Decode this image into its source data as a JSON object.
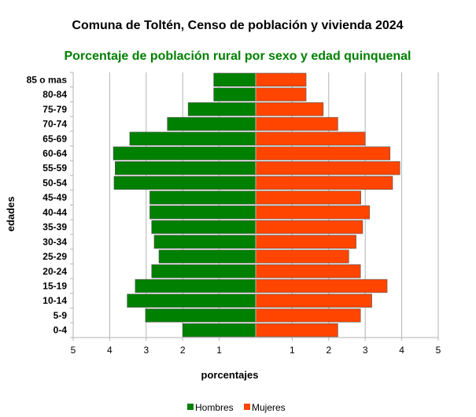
{
  "chart_data": {
    "type": "bar",
    "orientation": "horizontal",
    "layout": "population-pyramid",
    "title": "Comuna de Toltén, Censo de población y vivienda 2024",
    "subtitle": "Porcentaje de población rural por sexo y edad quinquenal",
    "subtitle_color": "#008000",
    "xlabel": "porcentajes",
    "ylabel": "edades",
    "xlim": [
      -5,
      5
    ],
    "x_ticks": [
      {
        "value": -5,
        "label": "5"
      },
      {
        "value": -4,
        "label": "4"
      },
      {
        "value": -3,
        "label": "3"
      },
      {
        "value": -2,
        "label": "2"
      },
      {
        "value": -1,
        "label": "1"
      },
      {
        "value": 1,
        "label": "1"
      },
      {
        "value": 2,
        "label": "2"
      },
      {
        "value": 3,
        "label": "3"
      },
      {
        "value": 4,
        "label": "4"
      },
      {
        "value": 5,
        "label": "5"
      }
    ],
    "grid": true,
    "legend_position": "bottom",
    "categories": [
      "85 o mas",
      "80-84",
      "75-79",
      "70-74",
      "65-69",
      "60-64",
      "55-59",
      "50-54",
      "45-49",
      "40-44",
      "35-39",
      "30-34",
      "25-29",
      "20-24",
      "15-19",
      "10-14",
      "5-9",
      "0-4"
    ],
    "series": [
      {
        "name": "Hombres",
        "color": "#008000",
        "side": "left",
        "values": [
          1.15,
          1.15,
          1.85,
          2.42,
          3.45,
          3.9,
          3.85,
          3.88,
          2.9,
          2.9,
          2.85,
          2.78,
          2.65,
          2.85,
          3.3,
          3.52,
          3.02,
          2.0
        ]
      },
      {
        "name": "Mujeres",
        "color": "#ff4500",
        "side": "right",
        "values": [
          1.38,
          1.38,
          1.85,
          2.25,
          3.0,
          3.68,
          3.95,
          3.75,
          2.88,
          3.12,
          2.93,
          2.75,
          2.55,
          2.87,
          3.6,
          3.18,
          2.87,
          2.25
        ]
      }
    ]
  }
}
